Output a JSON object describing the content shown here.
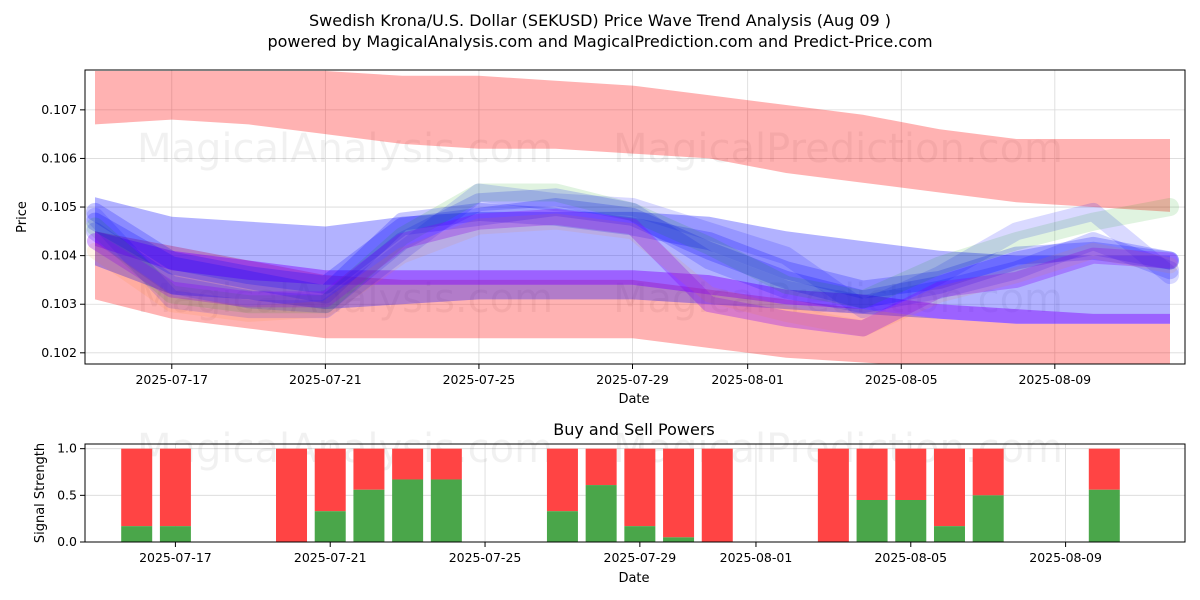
{
  "chart_data": [
    {
      "type": "area",
      "title": "Swedish Krona/U.S. Dollar (SEKUSD) Price Wave Trend Analysis (Aug 09 )",
      "subtitle": "powered by MagicalAnalysis.com and MagicalPrediction.com and Predict-Price.com",
      "xlabel": "Date",
      "ylabel": "Price",
      "x_ticks": [
        "2025-07-17",
        "2025-07-21",
        "2025-07-25",
        "2025-07-29",
        "2025-08-01",
        "2025-08-05",
        "2025-08-09"
      ],
      "y_ticks": [
        "0.102",
        "0.103",
        "0.104",
        "0.105",
        "0.106",
        "0.107"
      ],
      "ylim": [
        0.10177,
        0.10782
      ],
      "watermarks": [
        "MagicalAnalysis.com",
        "MagicalPrediction.com"
      ],
      "x_days": [
        0,
        2,
        4,
        6,
        8,
        10,
        12,
        14,
        16,
        18,
        20,
        22,
        24,
        26,
        28
      ],
      "bands": [
        {
          "name": "upper-channel",
          "color": "#ff0000",
          "opacity": 0.3,
          "upper": [
            0.1078,
            0.1078,
            0.1078,
            0.1078,
            0.1077,
            0.1077,
            0.1076,
            0.1075,
            0.1073,
            0.1071,
            0.1069,
            0.1066,
            0.1064,
            0.1064,
            0.1064
          ],
          "lower": [
            0.1067,
            0.1068,
            0.1067,
            0.1065,
            0.1063,
            0.1062,
            0.1062,
            0.1061,
            0.106,
            0.1057,
            0.1055,
            0.1053,
            0.1051,
            0.105,
            0.1049
          ]
        },
        {
          "name": "lower-channel",
          "color": "#ff0000",
          "opacity": 0.3,
          "upper": [
            0.1045,
            0.1042,
            0.1039,
            0.1036,
            0.1035,
            0.1035,
            0.1035,
            0.1035,
            0.1033,
            0.1031,
            0.1029,
            0.1027,
            0.1026,
            0.1026,
            0.1026
          ],
          "lower": [
            0.1031,
            0.1027,
            0.1025,
            0.1023,
            0.1023,
            0.1023,
            0.1023,
            0.1023,
            0.1021,
            0.1019,
            0.1018,
            0.1017,
            0.1016,
            0.1016,
            0.1016
          ]
        },
        {
          "name": "blue-channel",
          "color": "#0000ff",
          "opacity": 0.3,
          "upper": [
            0.1052,
            0.1048,
            0.1047,
            0.1046,
            0.1048,
            0.1049,
            0.1049,
            0.1049,
            0.1048,
            0.1045,
            0.1043,
            0.1041,
            0.104,
            0.104,
            0.104
          ],
          "lower": [
            0.1038,
            0.1032,
            0.1031,
            0.1029,
            0.103,
            0.1031,
            0.1031,
            0.1031,
            0.103,
            0.1029,
            0.1028,
            0.1027,
            0.1026,
            0.1026,
            0.1026
          ]
        },
        {
          "name": "purple-trend",
          "color": "#8000ff",
          "opacity": 0.45,
          "upper": [
            0.1045,
            0.1041,
            0.1039,
            0.1037,
            0.1037,
            0.1037,
            0.1037,
            0.1037,
            0.1036,
            0.1033,
            0.1032,
            0.103,
            0.1029,
            0.1028,
            0.1028
          ],
          "lower": [
            0.1042,
            0.1037,
            0.1035,
            0.1034,
            0.1034,
            0.1034,
            0.1034,
            0.1034,
            0.1032,
            0.103,
            0.1029,
            0.1027,
            0.1026,
            0.1026,
            0.1026
          ]
        }
      ],
      "waves": [
        {
          "color": "#0000ff",
          "opacity": 0.22,
          "width": 18,
          "values": [
            0.1047,
            0.1038,
            0.1035,
            0.1032,
            0.1047,
            0.1049,
            0.1048,
            0.1046,
            0.1043,
            0.1037,
            0.1033,
            0.1035,
            0.104,
            0.1041,
            0.1039
          ]
        },
        {
          "color": "#0000ff",
          "opacity": 0.22,
          "width": 18,
          "values": [
            0.1049,
            0.1039,
            0.1036,
            0.1034,
            0.1046,
            0.1048,
            0.105,
            0.1048,
            0.1041,
            0.1035,
            0.1031,
            0.1034,
            0.1039,
            0.1042,
            0.1039
          ]
        },
        {
          "color": "#0000ff",
          "opacity": 0.18,
          "width": 18,
          "values": [
            0.1045,
            0.1034,
            0.1031,
            0.103,
            0.1043,
            0.1051,
            0.1052,
            0.1049,
            0.1039,
            0.1033,
            0.103,
            0.1033,
            0.1037,
            0.1043,
            0.1037
          ]
        },
        {
          "color": "#0000ff",
          "opacity": 0.15,
          "width": 18,
          "values": [
            0.1048,
            0.1031,
            0.1029,
            0.1029,
            0.1041,
            0.1053,
            0.1051,
            0.105,
            0.1045,
            0.104,
            0.1029,
            0.1036,
            0.1045,
            0.1049,
            0.1036
          ]
        },
        {
          "color": "#00a000",
          "opacity": 0.12,
          "width": 18,
          "values": [
            0.1046,
            0.1032,
            0.103,
            0.103,
            0.1044,
            0.1053,
            0.1053,
            0.1049,
            0.1042,
            0.1034,
            0.1031,
            0.1038,
            0.1043,
            0.1047,
            0.105
          ]
        },
        {
          "color": "#8000ff",
          "opacity": 0.3,
          "width": 16,
          "values": [
            0.1043,
            0.1033,
            0.1031,
            0.1031,
            0.1043,
            0.1047,
            0.1048,
            0.1046,
            0.103,
            0.1027,
            0.1025,
            0.1033,
            0.1035,
            0.104,
            0.1039
          ]
        },
        {
          "color": "#ff8000",
          "opacity": 0.1,
          "width": 16,
          "values": [
            0.1041,
            0.103,
            0.1028,
            0.1029,
            0.104,
            0.1046,
            0.1047,
            0.1045,
            0.1032,
            0.1028,
            0.1025,
            0.1032,
            0.1036,
            0.1041,
            0.1038
          ]
        }
      ]
    },
    {
      "type": "bar",
      "title": "Buy and Sell Powers",
      "xlabel": "Date",
      "ylabel": "Signal Strength",
      "x_ticks": [
        "2025-07-17",
        "2025-07-21",
        "2025-07-25",
        "2025-07-29",
        "2025-08-01",
        "2025-08-05",
        "2025-08-09"
      ],
      "y_ticks": [
        "0.0",
        "0.5",
        "1.0"
      ],
      "ylim": [
        0,
        1.05
      ],
      "colors": {
        "buy": "#4aa64a",
        "sell": "#ff4444"
      },
      "bars": [
        {
          "day": 1,
          "buy": 0.17
        },
        {
          "day": 2,
          "buy": 0.17
        },
        {
          "day": 5,
          "buy": 0.0
        },
        {
          "day": 6,
          "buy": 0.33
        },
        {
          "day": 7,
          "buy": 0.56
        },
        {
          "day": 8,
          "buy": 0.67
        },
        {
          "day": 9,
          "buy": 0.67
        },
        {
          "day": 12,
          "buy": 0.33
        },
        {
          "day": 13,
          "buy": 0.61
        },
        {
          "day": 14,
          "buy": 0.17
        },
        {
          "day": 15,
          "buy": 0.05
        },
        {
          "day": 16,
          "buy": 0.0
        },
        {
          "day": 19,
          "buy": 0.0
        },
        {
          "day": 20,
          "buy": 0.45
        },
        {
          "day": 21,
          "buy": 0.45
        },
        {
          "day": 22,
          "buy": 0.17
        },
        {
          "day": 23,
          "buy": 0.5
        },
        {
          "day": 26,
          "buy": 0.56
        }
      ]
    }
  ]
}
